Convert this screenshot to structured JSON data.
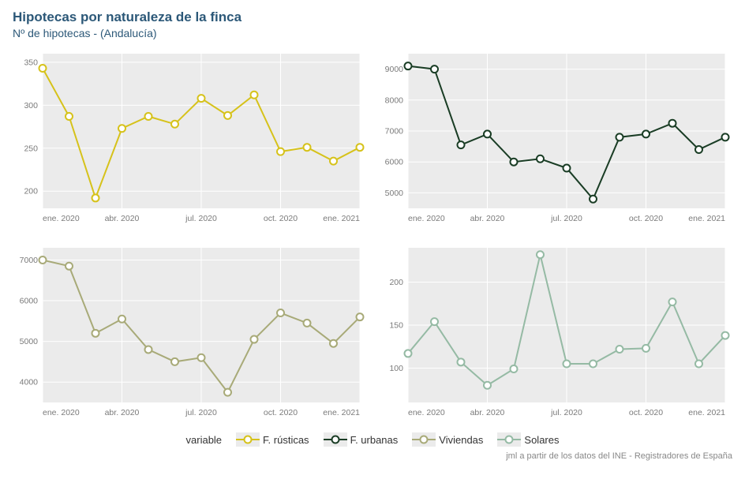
{
  "title": "Hipotecas por naturaleza de la finca",
  "subtitle": "Nº de hipotecas - (Andalucía)",
  "caption": "jml a partir de los datos del INE - Registradores de España",
  "legend_label": "variable",
  "layout": {
    "panel_bg": "#ebebeb",
    "page_bg": "#ffffff",
    "grid_color": "#ffffff",
    "axis_text_color": "#7a7a7a",
    "axis_fontsize": 10.5,
    "title_color": "#2c5878",
    "line_width": 2,
    "marker_radius": 4.5,
    "marker_fill": "#ffffff",
    "marker_stroke_width": 2
  },
  "x": {
    "labels": [
      "ene. 2020",
      "abr. 2020",
      "jul. 2020",
      "oct. 2020",
      "ene. 2021"
    ],
    "tick_idx": [
      0,
      3,
      6,
      9,
      12
    ]
  },
  "series": [
    {
      "key": "rusticas",
      "label": "F. rústicas",
      "color": "#d6c21a"
    },
    {
      "key": "urbanas",
      "label": "F. urbanas",
      "color": "#1a3d25"
    },
    {
      "key": "viviendas",
      "label": "Viviendas",
      "color": "#a8aa78"
    },
    {
      "key": "solares",
      "label": "Solares",
      "color": "#95baa4"
    }
  ],
  "panels": [
    {
      "series": "rusticas",
      "ylim": [
        180,
        360
      ],
      "yticks": [
        200,
        250,
        300,
        350
      ],
      "values": [
        343,
        287,
        192,
        273,
        287,
        278,
        308,
        288,
        312,
        246,
        251,
        235,
        251
      ]
    },
    {
      "series": "urbanas",
      "ylim": [
        4500,
        9500
      ],
      "yticks": [
        5000,
        6000,
        7000,
        8000,
        9000
      ],
      "values": [
        9100,
        9000,
        6550,
        6900,
        6000,
        6100,
        5800,
        4800,
        6800,
        6900,
        7250,
        6400,
        6800
      ]
    },
    {
      "series": "viviendas",
      "ylim": [
        3500,
        7300
      ],
      "yticks": [
        4000,
        5000,
        6000,
        7000
      ],
      "values": [
        7000,
        6850,
        5200,
        5550,
        4800,
        4500,
        4600,
        3750,
        5050,
        5700,
        5450,
        4950,
        5600
      ]
    },
    {
      "series": "solares",
      "ylim": [
        60,
        240
      ],
      "yticks": [
        100,
        150,
        200
      ],
      "values": [
        117,
        154,
        107,
        80,
        99,
        232,
        105,
        105,
        122,
        123,
        177,
        105,
        138
      ]
    }
  ]
}
